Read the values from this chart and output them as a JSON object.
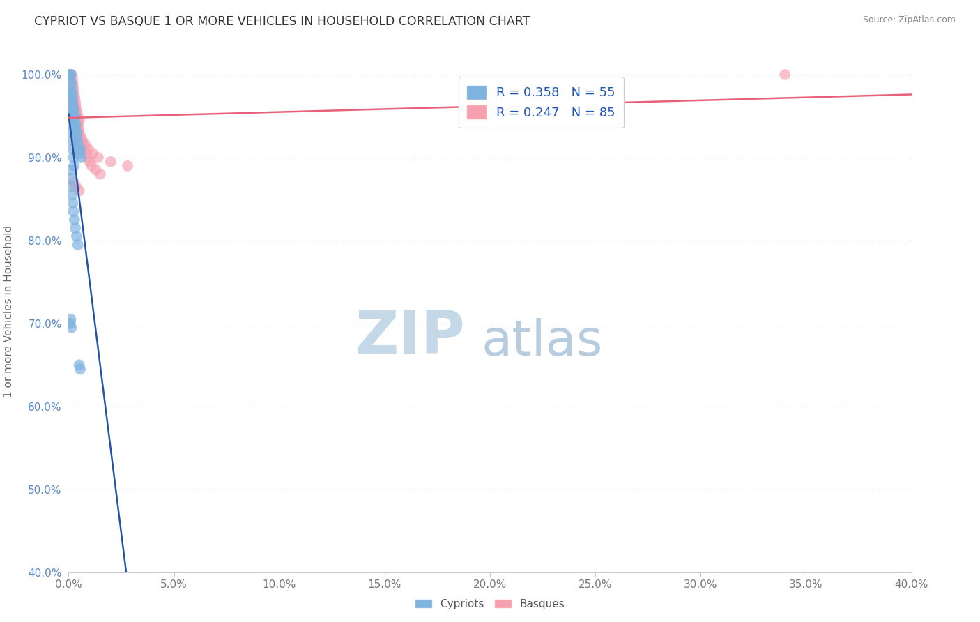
{
  "title": "CYPRIOT VS BASQUE 1 OR MORE VEHICLES IN HOUSEHOLD CORRELATION CHART",
  "source_text": "Source: ZipAtlas.com",
  "ylabel": "1 or more Vehicles in Household",
  "xlim": [
    0.0,
    40.0
  ],
  "ylim": [
    40.0,
    103.0
  ],
  "xticks": [
    0.0,
    5.0,
    10.0,
    15.0,
    20.0,
    25.0,
    30.0,
    35.0,
    40.0
  ],
  "yticks": [
    40.0,
    50.0,
    60.0,
    70.0,
    80.0,
    90.0,
    100.0
  ],
  "xticklabels": [
    "0.0%",
    "5.0%",
    "10.0%",
    "15.0%",
    "20.0%",
    "25.0%",
    "30.0%",
    "35.0%",
    "40.0%"
  ],
  "yticklabels": [
    "40.0%",
    "50.0%",
    "60.0%",
    "70.0%",
    "80.0%",
    "90.0%",
    "100.0%"
  ],
  "cypriot_color": "#7EB3E0",
  "basque_color": "#F4A0B0",
  "cypriot_line_color": "#2255AA",
  "basque_line_color": "#E8607A",
  "cypriot_R": 0.358,
  "cypriot_N": 55,
  "basque_R": 0.247,
  "basque_N": 85,
  "legend_text_color": "#2255BB",
  "background_color": "#ffffff",
  "watermark_zip": "ZIP",
  "watermark_atlas": "atlas",
  "watermark_color_zip": "#B8CCDD",
  "watermark_color_atlas": "#AABBD0",
  "cypriot_x": [
    0.05,
    0.05,
    0.08,
    0.1,
    0.1,
    0.12,
    0.12,
    0.15,
    0.15,
    0.18,
    0.18,
    0.2,
    0.2,
    0.22,
    0.22,
    0.25,
    0.25,
    0.28,
    0.3,
    0.3,
    0.32,
    0.35,
    0.38,
    0.4,
    0.42,
    0.45,
    0.48,
    0.5,
    0.55,
    0.6,
    0.05,
    0.07,
    0.09,
    0.12,
    0.14,
    0.16,
    0.18,
    0.2,
    0.23,
    0.26,
    0.1,
    0.12,
    0.15,
    0.17,
    0.2,
    0.23,
    0.28,
    0.32,
    0.38,
    0.44,
    0.08,
    0.1,
    0.13,
    0.5,
    0.55
  ],
  "cypriot_y": [
    100.0,
    99.5,
    100.0,
    100.0,
    98.5,
    99.0,
    97.5,
    98.0,
    97.0,
    97.5,
    96.0,
    96.5,
    95.5,
    96.0,
    95.0,
    95.5,
    94.5,
    94.0,
    95.0,
    93.5,
    93.0,
    94.0,
    92.5,
    93.0,
    92.0,
    91.5,
    91.0,
    90.5,
    91.0,
    90.0,
    98.0,
    97.0,
    96.0,
    95.0,
    94.0,
    93.0,
    92.0,
    91.0,
    90.0,
    89.0,
    88.5,
    87.5,
    86.5,
    85.5,
    84.5,
    83.5,
    82.5,
    81.5,
    80.5,
    79.5,
    70.0,
    70.5,
    69.5,
    65.0,
    64.5
  ],
  "basque_x": [
    0.05,
    0.05,
    0.08,
    0.08,
    0.1,
    0.1,
    0.12,
    0.12,
    0.15,
    0.15,
    0.18,
    0.18,
    0.2,
    0.2,
    0.22,
    0.22,
    0.25,
    0.25,
    0.28,
    0.28,
    0.3,
    0.3,
    0.33,
    0.35,
    0.38,
    0.4,
    0.42,
    0.45,
    0.48,
    0.5,
    0.55,
    0.6,
    0.65,
    0.7,
    0.8,
    0.9,
    1.0,
    1.1,
    1.3,
    1.5,
    0.08,
    0.1,
    0.13,
    0.16,
    0.2,
    0.24,
    0.28,
    0.33,
    0.38,
    0.44,
    0.05,
    0.07,
    0.09,
    0.12,
    0.15,
    0.18,
    0.22,
    0.26,
    0.3,
    0.35,
    0.4,
    0.48,
    0.57,
    0.67,
    0.8,
    0.95,
    1.15,
    1.4,
    2.0,
    2.8,
    0.06,
    0.09,
    0.12,
    0.16,
    0.2,
    0.25,
    0.3,
    0.36,
    0.43,
    0.52,
    0.25,
    0.35,
    0.5,
    34.0,
    0.6
  ],
  "basque_y": [
    100.0,
    99.5,
    100.0,
    99.0,
    100.0,
    98.5,
    100.0,
    98.0,
    100.0,
    97.5,
    99.5,
    97.0,
    99.0,
    96.5,
    98.5,
    96.0,
    98.0,
    95.5,
    97.5,
    95.0,
    97.0,
    94.5,
    96.5,
    96.0,
    95.5,
    95.0,
    94.5,
    94.0,
    93.5,
    93.0,
    92.5,
    92.0,
    91.5,
    91.0,
    90.5,
    90.0,
    89.5,
    89.0,
    88.5,
    88.0,
    97.5,
    97.0,
    96.5,
    96.0,
    95.5,
    95.0,
    94.5,
    94.0,
    93.5,
    93.0,
    98.5,
    98.0,
    97.5,
    97.0,
    96.5,
    96.0,
    95.5,
    95.0,
    94.5,
    94.0,
    93.5,
    93.0,
    92.5,
    92.0,
    91.5,
    91.0,
    90.5,
    90.0,
    89.5,
    89.0,
    99.0,
    98.5,
    98.0,
    97.5,
    97.0,
    96.5,
    96.0,
    95.5,
    95.0,
    94.5,
    87.0,
    86.5,
    86.0,
    100.0,
    90.5
  ]
}
